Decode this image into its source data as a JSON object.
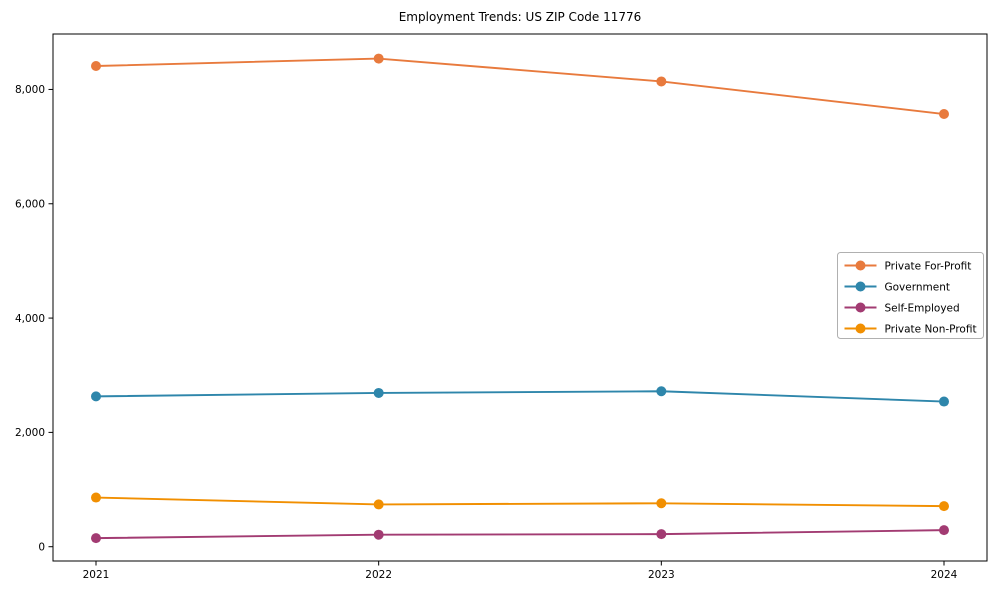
{
  "title": "Employment Trends: US ZIP Code 11776",
  "colors": {
    "background": "#ffffff",
    "axis": "#000000",
    "tick_label": "#000000",
    "legend_border": "#b0b0b0",
    "legend_background": "#ffffff",
    "for_profit": "#E87A3D",
    "government": "#2E86AB",
    "self_employed": "#A23B72",
    "non_profit": "#F18F01"
  },
  "chart_data": {
    "type": "line",
    "title": "Employment Trends: US ZIP Code 11776",
    "xlabel": "",
    "ylabel": "",
    "x": [
      "2021",
      "2022",
      "2023",
      "2024"
    ],
    "series": [
      {
        "name": "Private For-Profit",
        "color": "#E87A3D",
        "values": [
          8410,
          8540,
          8140,
          7570
        ]
      },
      {
        "name": "Government",
        "color": "#2E86AB",
        "values": [
          2630,
          2690,
          2720,
          2540
        ]
      },
      {
        "name": "Self-Employed",
        "color": "#A23B72",
        "values": [
          150,
          210,
          220,
          290
        ]
      },
      {
        "name": "Private Non-Profit",
        "color": "#F18F01",
        "values": [
          860,
          740,
          760,
          710
        ]
      }
    ],
    "ylim": [
      -250,
      8970
    ],
    "yticks": [
      0,
      2000,
      4000,
      6000,
      8000
    ],
    "ytick_labels": [
      "0",
      "2,000",
      "4,000",
      "6,000",
      "8,000"
    ],
    "xtick_labels": [
      "2021",
      "2022",
      "2023",
      "2024"
    ],
    "grid": false,
    "marker": "circle",
    "legend_position": "center right"
  }
}
